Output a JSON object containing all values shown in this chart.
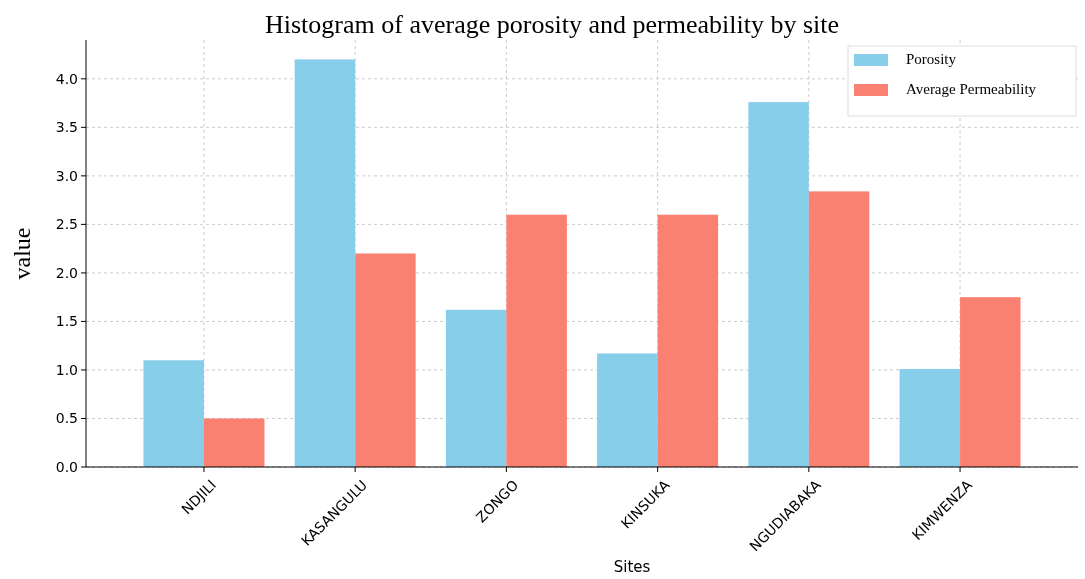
{
  "chart_data": {
    "type": "bar",
    "title": "Histogram of average porosity and permeability by site",
    "xlabel": "Sites",
    "ylabel": "value",
    "categories": [
      "NDJILI",
      "KASANGULU",
      "ZONGO",
      "KINSUKA",
      "NGUDIABAKA",
      "KIMWENZA"
    ],
    "series": [
      {
        "name": "Porosity",
        "color": "#87ceeb",
        "values": [
          1.1,
          4.2,
          1.62,
          1.17,
          3.76,
          1.01
        ]
      },
      {
        "name": "Average Permeability",
        "color": "#fa8072",
        "values": [
          0.5,
          2.2,
          2.6,
          2.6,
          2.84,
          1.75
        ]
      }
    ],
    "ylim": [
      0,
      4.4
    ],
    "yticks": [
      {
        "value": 0,
        "label": "0.0"
      },
      {
        "value": 0.5,
        "label": "0.5"
      },
      {
        "value": 1,
        "label": "1.0"
      },
      {
        "value": 1.5,
        "label": "1.5"
      },
      {
        "value": 2,
        "label": "2.0"
      },
      {
        "value": 2.5,
        "label": "2.5"
      },
      {
        "value": 3,
        "label": "3.0"
      },
      {
        "value": 3.5,
        "label": "3.5"
      },
      {
        "value": 4,
        "label": "4.0"
      }
    ],
    "grid": true,
    "legend": "top right"
  }
}
